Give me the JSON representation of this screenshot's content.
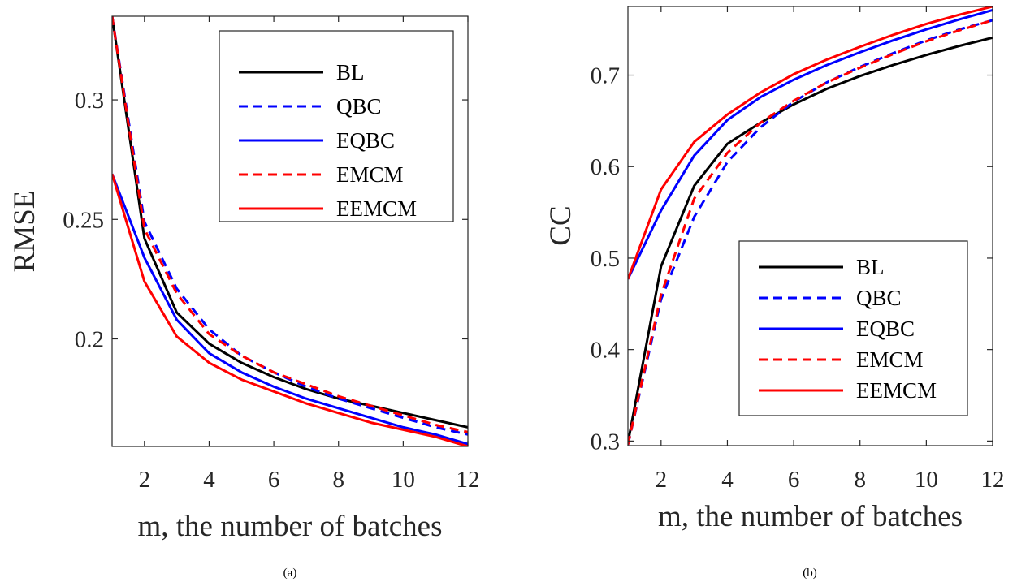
{
  "chart_data": [
    {
      "type": "line",
      "caption": "(a)",
      "xlabel": "m, the number of batches",
      "ylabel": "RMSE",
      "xlim": [
        1,
        12
      ],
      "ylim": [
        0.155,
        0.335
      ],
      "xticks": [
        2,
        4,
        6,
        8,
        10,
        12
      ],
      "yticks": [
        0.2,
        0.25,
        0.3
      ],
      "ytick_labels": [
        "0.2",
        "0.25",
        "0.3"
      ],
      "grid": false,
      "legend_position": "top-right",
      "x": [
        1,
        2,
        3,
        4,
        5,
        6,
        7,
        8,
        9,
        10,
        11,
        12
      ],
      "series": [
        {
          "name": "BL",
          "color": "#000000",
          "style": "solid",
          "values": [
            0.335,
            0.242,
            0.211,
            0.198,
            0.19,
            0.184,
            0.179,
            0.175,
            0.172,
            0.169,
            0.166,
            0.163
          ]
        },
        {
          "name": "QBC",
          "color": "#0000ff",
          "style": "dashed",
          "values": [
            0.335,
            0.249,
            0.221,
            0.204,
            0.193,
            0.186,
            0.18,
            0.175,
            0.171,
            0.167,
            0.163,
            0.16
          ]
        },
        {
          "name": "EQBC",
          "color": "#0000ff",
          "style": "solid",
          "values": [
            0.269,
            0.234,
            0.208,
            0.194,
            0.186,
            0.18,
            0.175,
            0.171,
            0.167,
            0.163,
            0.16,
            0.156
          ]
        },
        {
          "name": "EMCM",
          "color": "#ff0000",
          "style": "dashed",
          "values": [
            0.335,
            0.246,
            0.219,
            0.202,
            0.193,
            0.186,
            0.181,
            0.176,
            0.172,
            0.168,
            0.164,
            0.161
          ]
        },
        {
          "name": "EEMCM",
          "color": "#ff0000",
          "style": "solid",
          "values": [
            0.269,
            0.224,
            0.201,
            0.19,
            0.183,
            0.178,
            0.173,
            0.169,
            0.165,
            0.162,
            0.159,
            0.155
          ]
        }
      ]
    },
    {
      "type": "line",
      "caption": "(b)",
      "xlabel": "m, the number of batches",
      "ylabel": "CC",
      "xlim": [
        1,
        12
      ],
      "ylim": [
        0.295,
        0.775
      ],
      "xticks": [
        2,
        4,
        6,
        8,
        10,
        12
      ],
      "yticks": [
        0.3,
        0.4,
        0.5,
        0.6,
        0.7
      ],
      "ytick_labels": [
        "0.3",
        "0.4",
        "0.5",
        "0.6",
        "0.7"
      ],
      "grid": false,
      "legend_position": "bottom-right",
      "x": [
        1,
        2,
        3,
        4,
        5,
        6,
        7,
        8,
        9,
        10,
        11,
        12
      ],
      "series": [
        {
          "name": "BL",
          "color": "#000000",
          "style": "solid",
          "values": [
            0.298,
            0.491,
            0.579,
            0.625,
            0.648,
            0.668,
            0.685,
            0.699,
            0.711,
            0.722,
            0.732,
            0.741
          ]
        },
        {
          "name": "QBC",
          "color": "#0000ff",
          "style": "dashed",
          "values": [
            0.296,
            0.455,
            0.545,
            0.605,
            0.643,
            0.671,
            0.692,
            0.709,
            0.724,
            0.738,
            0.75,
            0.76
          ]
        },
        {
          "name": "EQBC",
          "color": "#0000ff",
          "style": "solid",
          "values": [
            0.477,
            0.552,
            0.612,
            0.651,
            0.676,
            0.695,
            0.711,
            0.725,
            0.738,
            0.75,
            0.761,
            0.771
          ]
        },
        {
          "name": "EMCM",
          "color": "#ff0000",
          "style": "dashed",
          "values": [
            0.296,
            0.46,
            0.565,
            0.615,
            0.648,
            0.672,
            0.692,
            0.708,
            0.723,
            0.737,
            0.749,
            0.76
          ]
        },
        {
          "name": "EEMCM",
          "color": "#ff0000",
          "style": "solid",
          "values": [
            0.477,
            0.575,
            0.627,
            0.657,
            0.681,
            0.701,
            0.717,
            0.731,
            0.744,
            0.756,
            0.766,
            0.775
          ]
        }
      ]
    }
  ]
}
